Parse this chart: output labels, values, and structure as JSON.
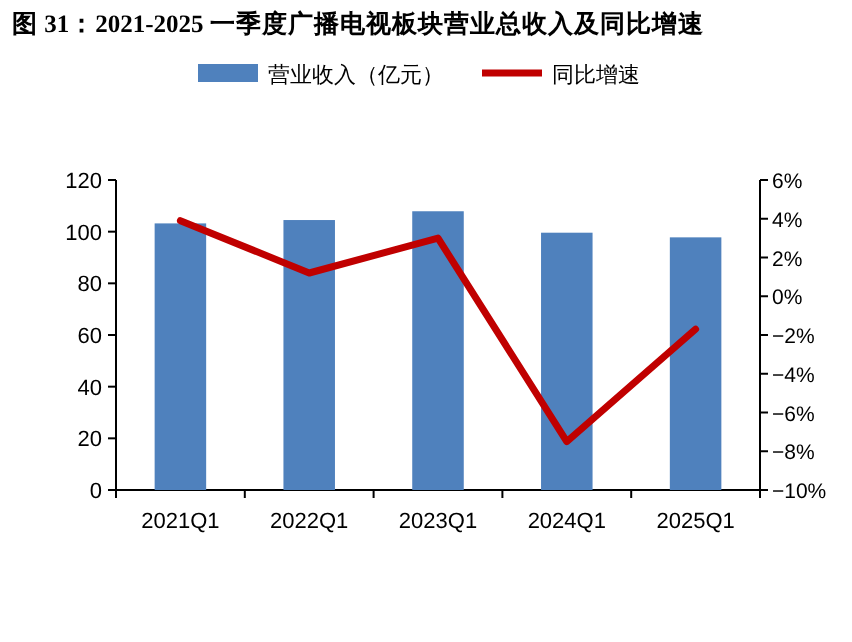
{
  "chart_data": {
    "type": "bar",
    "title": "图 31：2021-2025 一季度广播电视板块营业总收入及同比增速",
    "categories": [
      "2021Q1",
      "2022Q1",
      "2023Q1",
      "2024Q1",
      "2025Q1"
    ],
    "series": [
      {
        "name": "营业收入（亿元）",
        "color": "#4f81bd",
        "values": [
          103.2,
          104.5,
          107.9,
          99.6,
          97.8
        ]
      },
      {
        "name": "同比增速",
        "type": "line",
        "axis": "y2",
        "color": "#c00000",
        "values": [
          3.9,
          1.2,
          3.0,
          -7.5,
          -1.7
        ]
      }
    ],
    "ylim": [
      0,
      120
    ],
    "yticks": [
      0,
      20,
      40,
      60,
      80,
      100,
      120
    ],
    "y2lim": [
      -10,
      6
    ],
    "y2ticks": [
      {
        "value": -10,
        "label": "−10%"
      },
      {
        "value": -8,
        "label": "−8%"
      },
      {
        "value": -6,
        "label": "−6%"
      },
      {
        "value": -4,
        "label": "−4%"
      },
      {
        "value": -2,
        "label": "−2%"
      },
      {
        "value": 0,
        "label": "0%"
      },
      {
        "value": 2,
        "label": "2%"
      },
      {
        "value": 4,
        "label": "4%"
      },
      {
        "value": 6,
        "label": "6%"
      }
    ],
    "legend": "top",
    "marker": "none",
    "line_style": "solid"
  }
}
